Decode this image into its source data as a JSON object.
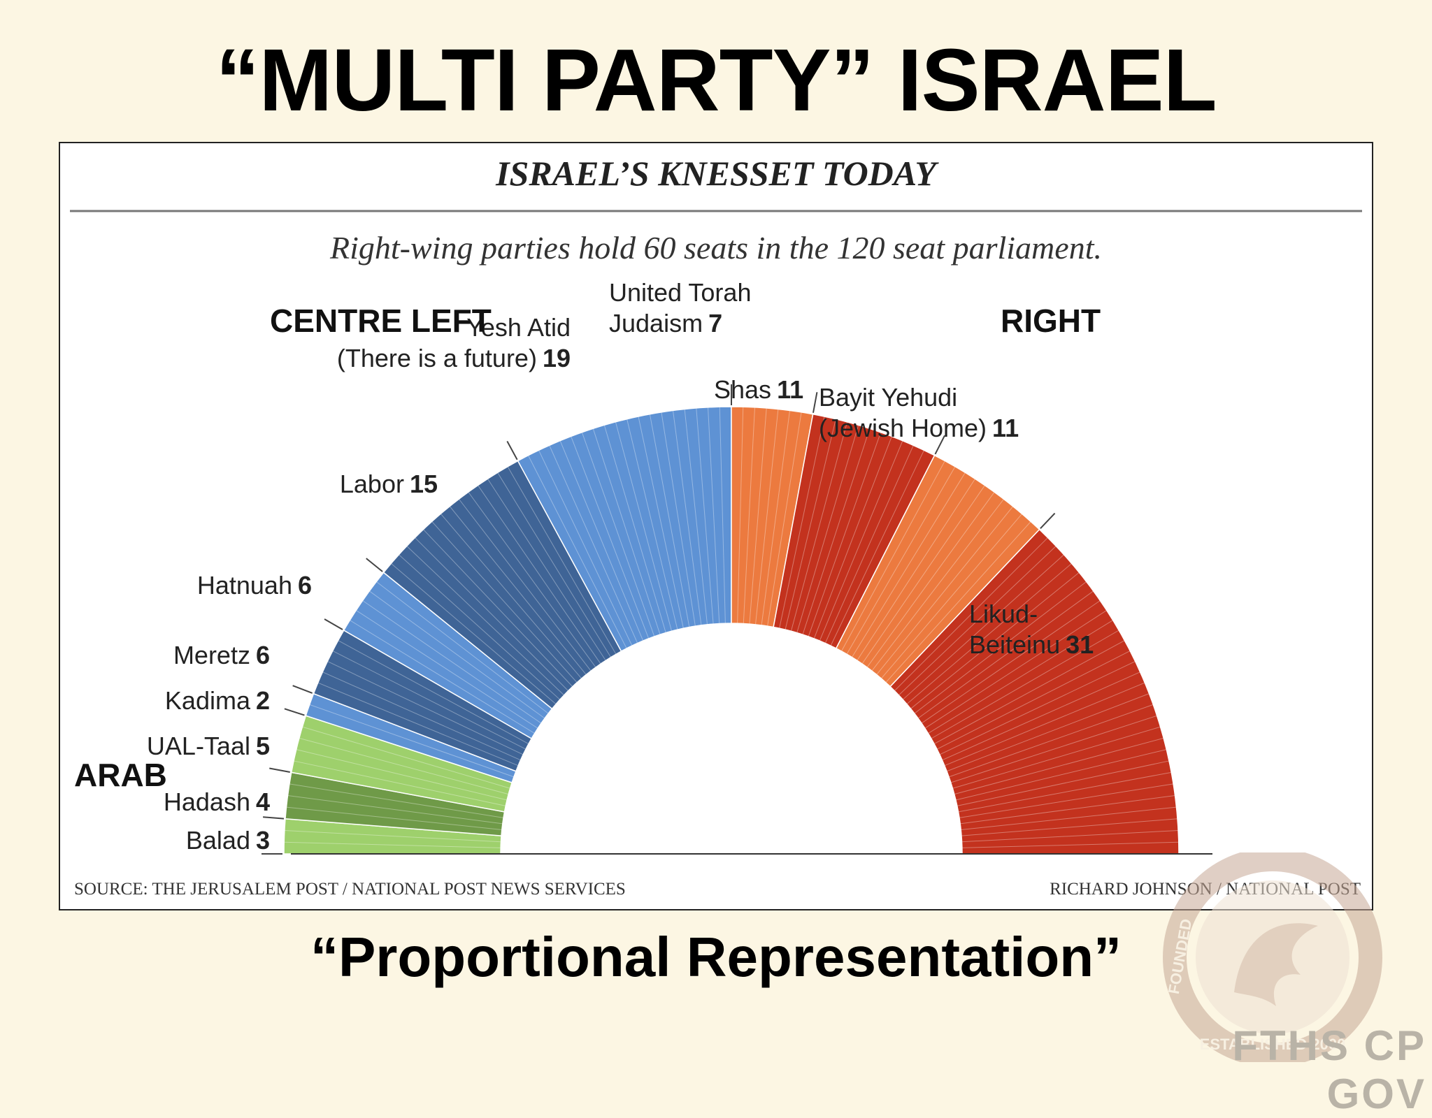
{
  "slide": {
    "title": "“MULTI PARTY” ISRAEL",
    "subtitle": "“Proportional Representation”",
    "watermark_text": "FTHS CP GOV",
    "watermark_ring_top": "FOUNDED",
    "watermark_ring_bottom": "ESTABLISHED 2000"
  },
  "chart_data": {
    "type": "parliament",
    "title": "ISRAEL’S KNESSET TODAY",
    "subtitle": "Right-wing parties hold 60 seats in the 120 seat parliament.",
    "total_seats": 120,
    "groups": [
      {
        "name": "ARAB"
      },
      {
        "name": "CENTRE LEFT"
      },
      {
        "name": "RIGHT"
      }
    ],
    "parties": [
      {
        "name": "Balad",
        "seats": 3,
        "label_lines": [
          "Balad"
        ],
        "color": "#9ed06c",
        "group": "ARAB"
      },
      {
        "name": "Hadash",
        "seats": 4,
        "label_lines": [
          "Hadash"
        ],
        "color": "#6f9a48",
        "group": "ARAB"
      },
      {
        "name": "UAL-Taal",
        "seats": 5,
        "label_lines": [
          "UAL-Taal"
        ],
        "color": "#9ed06c",
        "group": "ARAB"
      },
      {
        "name": "Kadima",
        "seats": 2,
        "label_lines": [
          "Kadima"
        ],
        "color": "#5e92d4",
        "group": "CENTRE LEFT"
      },
      {
        "name": "Meretz",
        "seats": 6,
        "label_lines": [
          "Meretz"
        ],
        "color": "#3f6496",
        "group": "CENTRE LEFT"
      },
      {
        "name": "Hatnuah",
        "seats": 6,
        "label_lines": [
          "Hatnuah"
        ],
        "color": "#5e92d4",
        "group": "CENTRE LEFT"
      },
      {
        "name": "Labor",
        "seats": 15,
        "label_lines": [
          "Labor"
        ],
        "color": "#3f6496",
        "group": "CENTRE LEFT"
      },
      {
        "name": "Yesh Atid",
        "seats": 19,
        "label_lines": [
          "Yesh Atid",
          "(There is a future)"
        ],
        "color": "#5e92d4",
        "group": "CENTRE LEFT"
      },
      {
        "name": "United Torah Judaism",
        "seats": 7,
        "label_lines": [
          "United Torah",
          "Judaism"
        ],
        "color": "#ec7a3f",
        "group": "RIGHT"
      },
      {
        "name": "Shas",
        "seats": 11,
        "label_lines": [
          "Shas"
        ],
        "color": "#c3321e",
        "group": "RIGHT"
      },
      {
        "name": "Bayit Yehudi",
        "seats": 11,
        "label_lines": [
          "Bayit Yehudi",
          "(Jewish Home)"
        ],
        "color": "#ec7a3f",
        "group": "RIGHT"
      },
      {
        "name": "Likud-Beiteinu",
        "seats": 31,
        "label_lines": [
          "Likud-",
          "Beiteinu"
        ],
        "color": "#c3321e",
        "group": "RIGHT"
      }
    ],
    "source": "SOURCE: THE JERUSALEM POST / NATIONAL POST NEWS SERVICES",
    "credit": "RICHARD JOHNSON / NATIONAL POST"
  }
}
